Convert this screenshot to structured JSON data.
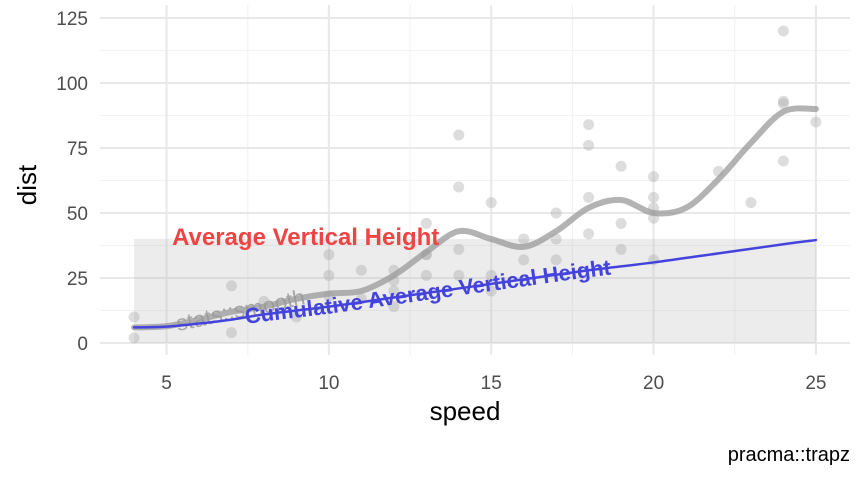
{
  "chart_data": {
    "type": "scatter",
    "x_label": "speed",
    "y_label": "dist",
    "caption": "pracma::trapz",
    "xlim": [
      2.95,
      26.05
    ],
    "ylim": [
      -4.6,
      130
    ],
    "xticks": [
      5,
      10,
      15,
      20,
      25
    ],
    "yticks": [
      0,
      25,
      50,
      75,
      100,
      125
    ],
    "grid": true,
    "point_color": "#aaaaaa",
    "x": [
      4,
      4,
      7,
      7,
      8,
      9,
      10,
      10,
      10,
      11,
      11,
      12,
      12,
      12,
      12,
      13,
      13,
      13,
      13,
      14,
      14,
      14,
      14,
      15,
      15,
      15,
      16,
      16,
      17,
      17,
      17,
      18,
      18,
      18,
      18,
      19,
      19,
      19,
      20,
      20,
      20,
      20,
      20,
      22,
      23,
      24,
      24,
      24,
      24,
      25
    ],
    "y": [
      2,
      10,
      4,
      22,
      16,
      10,
      18,
      26,
      34,
      17,
      28,
      14,
      20,
      24,
      28,
      26,
      34,
      34,
      46,
      26,
      36,
      60,
      80,
      20,
      26,
      54,
      32,
      40,
      32,
      40,
      50,
      42,
      56,
      76,
      84,
      36,
      46,
      68,
      32,
      48,
      52,
      56,
      64,
      66,
      54,
      70,
      92,
      93,
      120,
      85
    ],
    "average": {
      "label": "Average Vertical Height",
      "value": 40,
      "xmin": 4,
      "xmax": 25,
      "color": "#ee4444"
    },
    "series": [
      {
        "name": "stats::smooth",
        "color": "#999999",
        "x": [
          4,
          5,
          6,
          7,
          8,
          9,
          10,
          11,
          12,
          13,
          14,
          15,
          16,
          17,
          18,
          19,
          20,
          21,
          22,
          23,
          24,
          25
        ],
        "values": [
          6,
          6.5,
          9,
          12,
          14,
          17,
          19,
          20,
          26,
          35,
          43,
          40,
          37,
          43,
          52,
          55,
          50,
          52,
          63,
          77,
          89,
          90
        ]
      },
      {
        "name": "Cumulative Average Vertical Height",
        "color": "#4444dd",
        "x": [
          4,
          5,
          6,
          7,
          8,
          10,
          12,
          14,
          16,
          18,
          20,
          22,
          24,
          25
        ],
        "values": [
          6,
          6.3,
          7.5,
          9,
          11,
          14,
          17.5,
          21,
          24.5,
          28,
          31,
          34.5,
          38,
          39.6
        ]
      }
    ]
  }
}
